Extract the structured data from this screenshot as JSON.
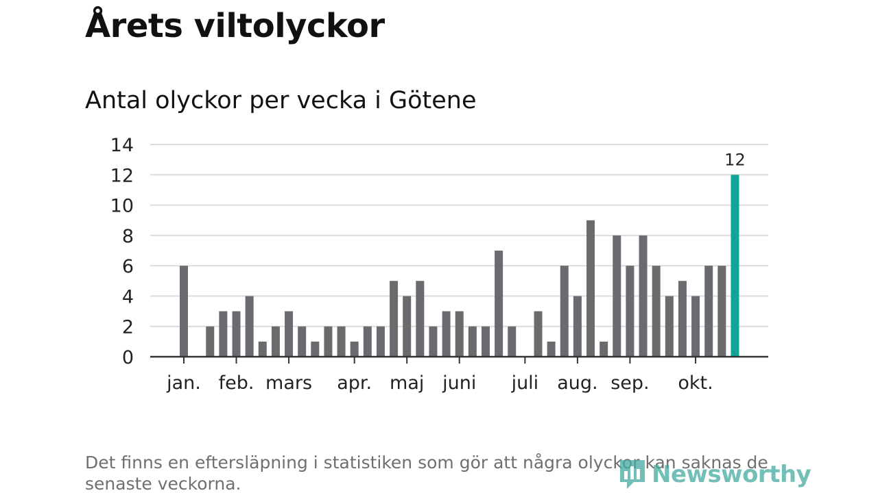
{
  "header": {
    "title": "Årets viltolyckor",
    "subtitle": "Antal olyckor per vecka i Götene"
  },
  "chart_data": {
    "type": "bar",
    "title": "Årets viltolyckor",
    "subtitle": "Antal olyckor per vecka i Götene",
    "xlabel": "",
    "ylabel": "",
    "ylim": [
      0,
      14
    ],
    "yticks": [
      0,
      2,
      4,
      6,
      8,
      10,
      12,
      14
    ],
    "grid": true,
    "unit": "vecka",
    "values": [
      6,
      0,
      2,
      3,
      3,
      4,
      1,
      2,
      3,
      2,
      1,
      2,
      2,
      1,
      2,
      2,
      5,
      4,
      5,
      2,
      3,
      3,
      2,
      2,
      7,
      2,
      0,
      3,
      1,
      6,
      4,
      9,
      1,
      8,
      6,
      8,
      6,
      4,
      5,
      4,
      6,
      6,
      12
    ],
    "months": [
      {
        "label": "jan.",
        "week": 1
      },
      {
        "label": "feb.",
        "week": 5
      },
      {
        "label": "mars",
        "week": 9
      },
      {
        "label": "apr.",
        "week": 14
      },
      {
        "label": "maj",
        "week": 18
      },
      {
        "label": "juni",
        "week": 22
      },
      {
        "label": "juli",
        "week": 27
      },
      {
        "label": "aug.",
        "week": 31
      },
      {
        "label": "sep.",
        "week": 35
      },
      {
        "label": "okt.",
        "week": 40
      }
    ],
    "highlight": {
      "week": 43,
      "value": 12,
      "label": "12"
    },
    "colors": {
      "bar": "#6b6a6f",
      "highlight": "#0fa695",
      "grid": "#dcdcdc",
      "axis": "#333333",
      "text": "#222222"
    }
  },
  "footnote": "Det finns en eftersläpning i statistiken som gör att några olyckor kan saknas de senaste veckorna.",
  "brand": {
    "name": "Newsworthy",
    "icon": "newsworthy-logo-icon",
    "color": "#43aaa0"
  }
}
